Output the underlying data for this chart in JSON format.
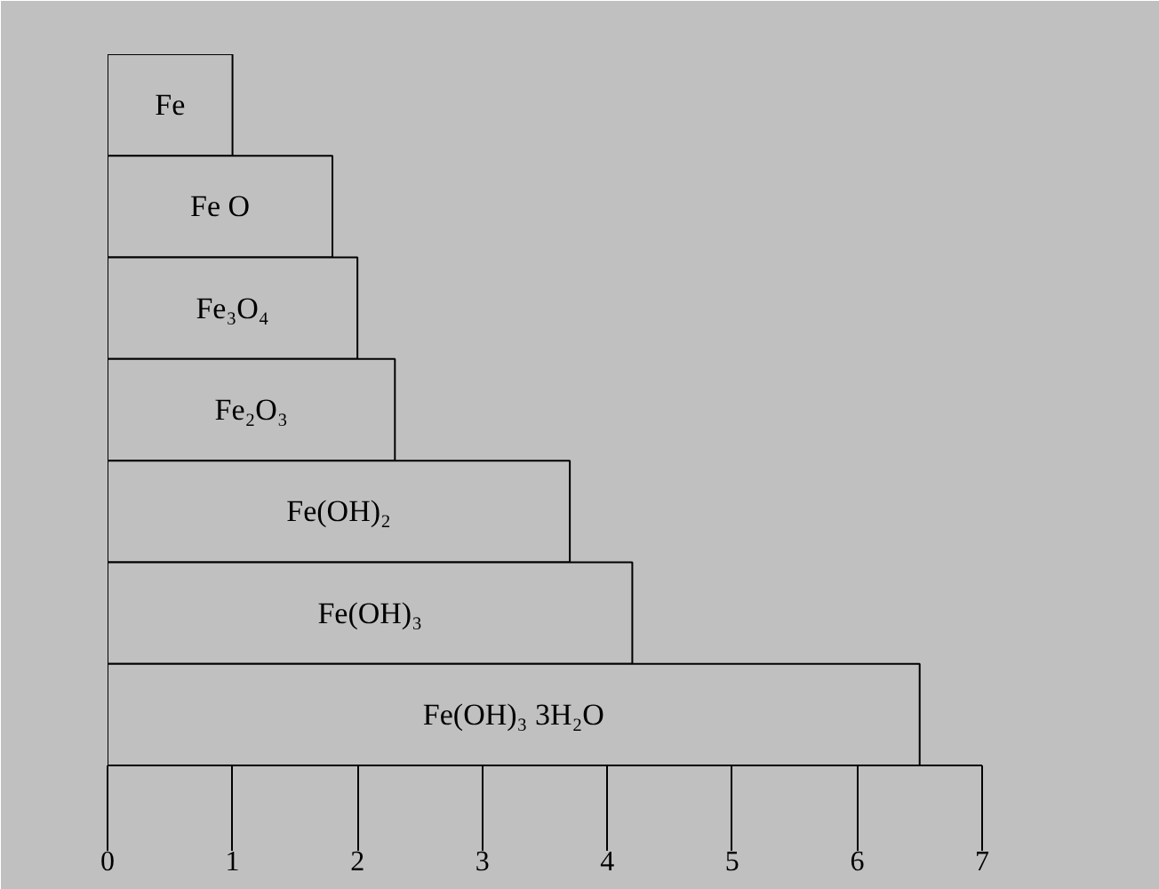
{
  "chart_data": {
    "type": "bar",
    "orientation": "horizontal",
    "categories": [
      "Fe",
      "Fe O",
      "Fe₃O₄",
      "Fe₂O₃",
      "Fe(OH)₂",
      "Fe(OH)₃",
      "Fe(OH)₃ 3H₂O"
    ],
    "values": [
      1.0,
      1.8,
      2.0,
      2.3,
      3.7,
      4.2,
      6.5
    ],
    "color": "#c0c0c0",
    "xlim": [
      0,
      7
    ],
    "xticks": [
      0,
      1,
      2,
      3,
      4,
      5,
      6,
      7
    ],
    "grid": false
  }
}
